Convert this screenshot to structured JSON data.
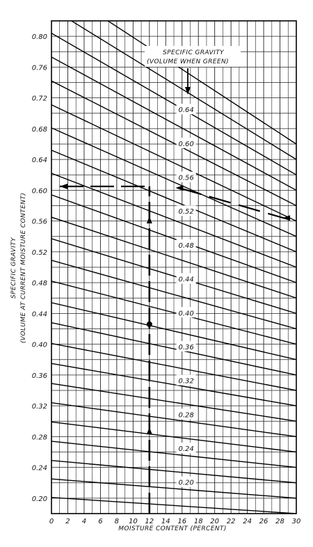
{
  "chart_data": {
    "type": "line",
    "title": "",
    "xlabel": "MOISTURE CONTENT (PERCENT)",
    "ylabel_line1": "SPECIFIC GRAVITY",
    "ylabel_line2": "(VOLUME AT CURRENT MOISTURE CONTENT)",
    "xlim": [
      0,
      30
    ],
    "ylim": [
      0.18,
      0.82
    ],
    "x_ticks": [
      0,
      2,
      4,
      6,
      8,
      10,
      12,
      14,
      16,
      18,
      20,
      22,
      24,
      26,
      28,
      30
    ],
    "x_tick_labels": [
      "0",
      "2",
      "4",
      "6",
      "8",
      "10",
      "12",
      "14",
      "16",
      "18",
      "20",
      "22",
      "24",
      "26",
      "28",
      "30"
    ],
    "y_ticks": [
      0.2,
      0.24,
      0.28,
      0.32,
      0.36,
      0.4,
      0.44,
      0.48,
      0.52,
      0.56,
      0.6,
      0.64,
      0.68,
      0.72,
      0.76,
      0.8
    ],
    "y_tick_labels": [
      "0.20",
      "0.24",
      "0.28",
      "0.32",
      "0.36",
      "0.40",
      "0.44",
      "0.48",
      "0.52",
      "0.56",
      "0.60",
      "0.64",
      "0.68",
      "0.72",
      "0.76",
      "0.80"
    ],
    "grid": true,
    "annotation_line1": "SPECIFIC GRAVITY",
    "annotation_line2": "(VOLUME WHEN GREEN)",
    "series": [
      {
        "green_sg": 0.18,
        "points": [
          [
            0,
            0.201
          ],
          [
            30,
            0.18
          ]
        ]
      },
      {
        "green_sg": 0.2,
        "points": [
          [
            0,
            0.225
          ],
          [
            30,
            0.2
          ]
        ]
      },
      {
        "green_sg": 0.22,
        "points": [
          [
            0,
            0.249
          ],
          [
            30,
            0.22
          ]
        ]
      },
      {
        "green_sg": 0.24,
        "points": [
          [
            0,
            0.274
          ],
          [
            30,
            0.24
          ]
        ]
      },
      {
        "green_sg": 0.26,
        "points": [
          [
            0,
            0.299
          ],
          [
            30,
            0.26
          ]
        ]
      },
      {
        "green_sg": 0.28,
        "points": [
          [
            0,
            0.324
          ],
          [
            30,
            0.28
          ]
        ]
      },
      {
        "green_sg": 0.3,
        "points": [
          [
            0,
            0.349
          ],
          [
            30,
            0.3
          ]
        ]
      },
      {
        "green_sg": 0.32,
        "points": [
          [
            0,
            0.375
          ],
          [
            30,
            0.32
          ]
        ]
      },
      {
        "green_sg": 0.34,
        "points": [
          [
            0,
            0.401
          ],
          [
            30,
            0.34
          ]
        ]
      },
      {
        "green_sg": 0.36,
        "points": [
          [
            0,
            0.428
          ],
          [
            30,
            0.36
          ]
        ]
      },
      {
        "green_sg": 0.38,
        "points": [
          [
            0,
            0.454
          ],
          [
            30,
            0.38
          ]
        ]
      },
      {
        "green_sg": 0.4,
        "points": [
          [
            0,
            0.482
          ],
          [
            30,
            0.4
          ]
        ]
      },
      {
        "green_sg": 0.42,
        "points": [
          [
            0,
            0.509
          ],
          [
            30,
            0.42
          ]
        ]
      },
      {
        "green_sg": 0.44,
        "points": [
          [
            0,
            0.537
          ],
          [
            30,
            0.44
          ]
        ]
      },
      {
        "green_sg": 0.46,
        "points": [
          [
            0,
            0.565
          ],
          [
            30,
            0.46
          ]
        ]
      },
      {
        "green_sg": 0.48,
        "points": [
          [
            0,
            0.594
          ],
          [
            30,
            0.48
          ]
        ]
      },
      {
        "green_sg": 0.5,
        "points": [
          [
            0,
            0.622
          ],
          [
            30,
            0.5
          ]
        ]
      },
      {
        "green_sg": 0.52,
        "points": [
          [
            0,
            0.652
          ],
          [
            30,
            0.52
          ]
        ]
      },
      {
        "green_sg": 0.54,
        "points": [
          [
            0,
            0.681
          ],
          [
            30,
            0.54
          ]
        ]
      },
      {
        "green_sg": 0.56,
        "points": [
          [
            0,
            0.711
          ],
          [
            30,
            0.56
          ]
        ]
      },
      {
        "green_sg": 0.58,
        "points": [
          [
            0,
            0.742
          ],
          [
            30,
            0.58
          ]
        ]
      },
      {
        "green_sg": 0.6,
        "points": [
          [
            0,
            0.773
          ],
          [
            30,
            0.6
          ]
        ]
      },
      {
        "green_sg": 0.62,
        "points": [
          [
            0,
            0.804
          ],
          [
            30,
            0.62
          ]
        ]
      },
      {
        "green_sg": 0.64,
        "points": [
          [
            0,
            0.836
          ],
          [
            30,
            0.64
          ]
        ]
      },
      {
        "green_sg": 0.66,
        "points": [
          [
            0,
            0.868
          ],
          [
            30,
            0.66
          ]
        ]
      }
    ],
    "curve_labels": [
      {
        "text": "0.64",
        "at": [
          16.5,
          0.705
        ]
      },
      {
        "text": "0.60",
        "at": [
          16.5,
          0.661
        ]
      },
      {
        "text": "0.56",
        "at": [
          16.5,
          0.617
        ]
      },
      {
        "text": "0.52",
        "at": [
          16.5,
          0.573
        ]
      },
      {
        "text": "0.48",
        "at": [
          16.5,
          0.529
        ]
      },
      {
        "text": "0.44",
        "at": [
          16.5,
          0.485
        ]
      },
      {
        "text": "0.40",
        "at": [
          16.5,
          0.441
        ]
      },
      {
        "text": "0.36",
        "at": [
          16.5,
          0.397
        ]
      },
      {
        "text": "0.32",
        "at": [
          16.5,
          0.353
        ]
      },
      {
        "text": "0.28",
        "at": [
          16.5,
          0.309
        ]
      },
      {
        "text": "0.24",
        "at": [
          16.5,
          0.265
        ]
      },
      {
        "text": "0.20",
        "at": [
          16.5,
          0.221
        ]
      }
    ],
    "example_path": {
      "vertical_x": 12,
      "vertical_from": 0.18,
      "vertical_to": 0.605,
      "point": [
        12,
        0.426
      ],
      "horizontal_y": 0.605,
      "horizontal_to_x": 0,
      "green_curve_dashed_from": [
        30,
        0.56
      ],
      "green_curve_dashed_to": [
        15,
        0.605
      ]
    }
  }
}
